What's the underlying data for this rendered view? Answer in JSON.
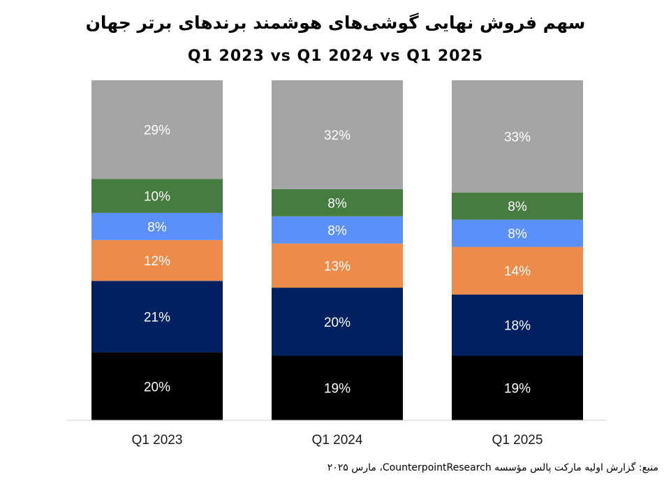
{
  "chart_data": {
    "type": "bar",
    "stacked": true,
    "title": "سهم فروش نهایی گوشی‌های هوشمند برندهای برتر جهان",
    "subtitle": "Q1 2023 vs Q1 2024 vs Q1 2025",
    "categories": [
      "Q1 2023",
      "Q1 2024",
      "Q1 2025"
    ],
    "series": [
      {
        "values": [
          20,
          19,
          19
        ],
        "labels": [
          "20%",
          "19%",
          "19%"
        ],
        "color": "#000000",
        "text_color": "#ffffff"
      },
      {
        "values": [
          21,
          20,
          18
        ],
        "labels": [
          "21%",
          "20%",
          "18%"
        ],
        "color": "#002060",
        "text_color": "#ffffff"
      },
      {
        "values": [
          12,
          13,
          14
        ],
        "labels": [
          "12%",
          "13%",
          "14%"
        ],
        "color": "#ED8B4A",
        "text_color": "#ffffff"
      },
      {
        "values": [
          8,
          8,
          8
        ],
        "labels": [
          "8%",
          "8%",
          "8%"
        ],
        "color": "#5B8FF9",
        "text_color": "#ffffff"
      },
      {
        "values": [
          10,
          8,
          8
        ],
        "labels": [
          "10%",
          "8%",
          "8%"
        ],
        "color": "#477C40",
        "text_color": "#ffffff"
      },
      {
        "values": [
          29,
          32,
          33
        ],
        "labels": [
          "29%",
          "32%",
          "33%"
        ],
        "color": "#A5A5A5",
        "text_color": "#ffffff"
      }
    ],
    "ylim": [
      0,
      100
    ],
    "grid": false,
    "legend": "none",
    "source": "منبع: گزارش اولیه مارکت پالس مؤسسه CounterpointResearch، مارس ۲۰۲۵"
  }
}
